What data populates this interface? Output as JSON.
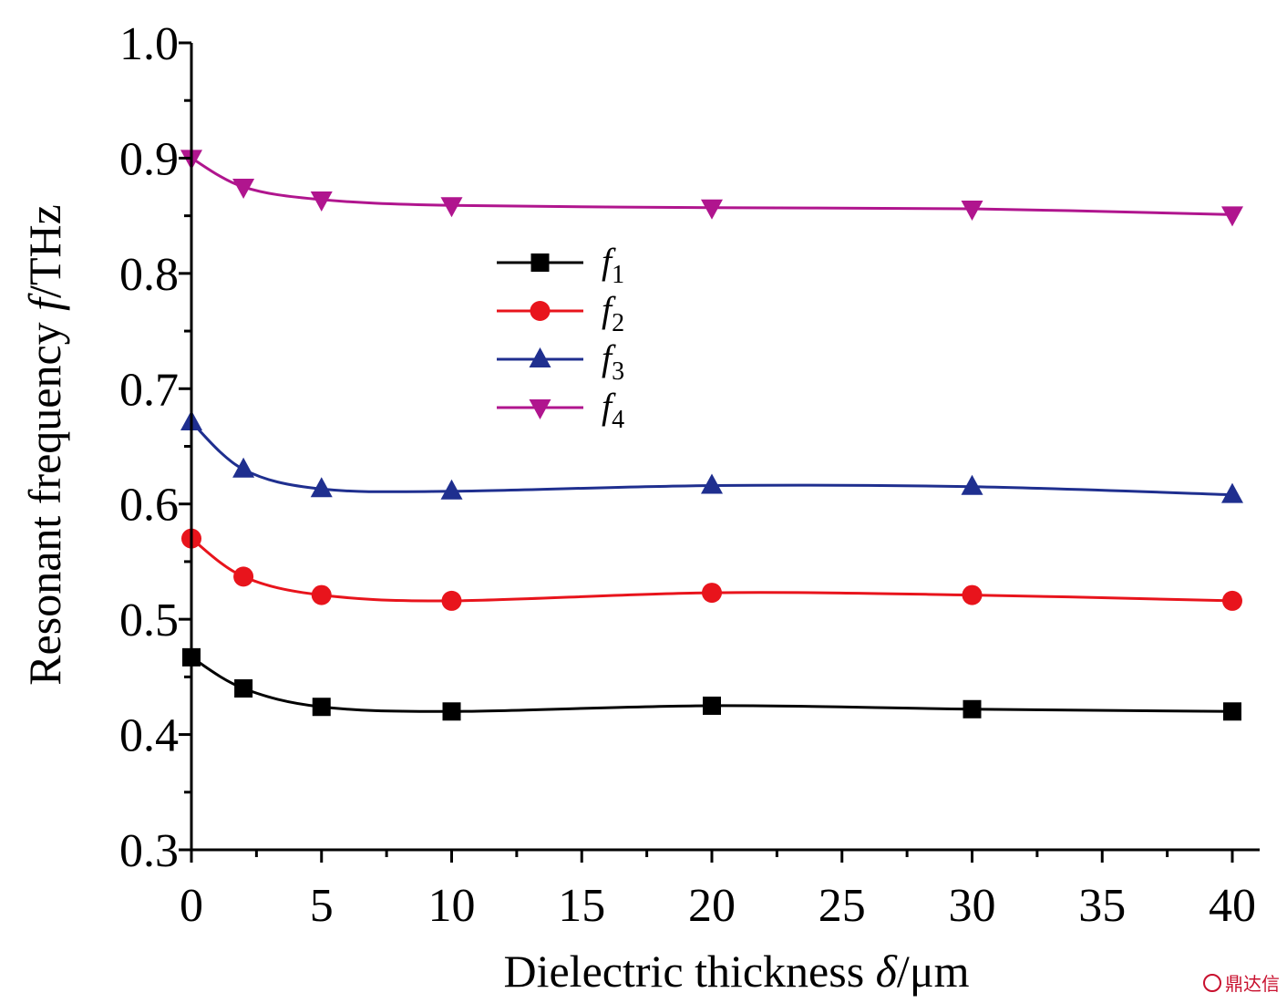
{
  "chart_data": {
    "type": "line",
    "xlabel_prefix": "Dielectric thickness ",
    "xlabel_symbol": "δ",
    "xlabel_unit": "/μm",
    "ylabel_prefix": "Resonant frequency ",
    "ylabel_symbol": "f",
    "ylabel_unit": "/THz",
    "xlim": [
      0,
      40
    ],
    "ylim": [
      0.3,
      1.0
    ],
    "xticks": [
      0,
      5,
      10,
      15,
      20,
      25,
      30,
      35,
      40
    ],
    "yticks": [
      0.3,
      0.4,
      0.5,
      0.6,
      0.7,
      0.8,
      0.9,
      1.0
    ],
    "ytick_labels": [
      "0.3",
      "0.4",
      "0.5",
      "0.6",
      "0.7",
      "0.8",
      "0.9",
      "1.0"
    ],
    "grid": false,
    "legend_position": "center-left",
    "x": [
      0,
      2,
      5,
      10,
      20,
      30,
      40
    ],
    "series": [
      {
        "name": "f",
        "sub": "1",
        "marker": "square",
        "color": "#000000",
        "values": [
          0.467,
          0.44,
          0.424,
          0.42,
          0.425,
          0.422,
          0.42
        ]
      },
      {
        "name": "f",
        "sub": "2",
        "marker": "circle",
        "color": "#e8141c",
        "values": [
          0.57,
          0.537,
          0.521,
          0.516,
          0.523,
          0.521,
          0.516
        ]
      },
      {
        "name": "f",
        "sub": "3",
        "marker": "triangle-up",
        "color": "#1f2f8f",
        "values": [
          0.671,
          0.63,
          0.613,
          0.611,
          0.616,
          0.615,
          0.608
        ]
      },
      {
        "name": "f",
        "sub": "4",
        "marker": "triangle-down",
        "color": "#b0158e",
        "values": [
          0.9,
          0.875,
          0.864,
          0.859,
          0.857,
          0.856,
          0.851
        ]
      }
    ]
  },
  "watermark": {
    "text": "鼎达信"
  }
}
